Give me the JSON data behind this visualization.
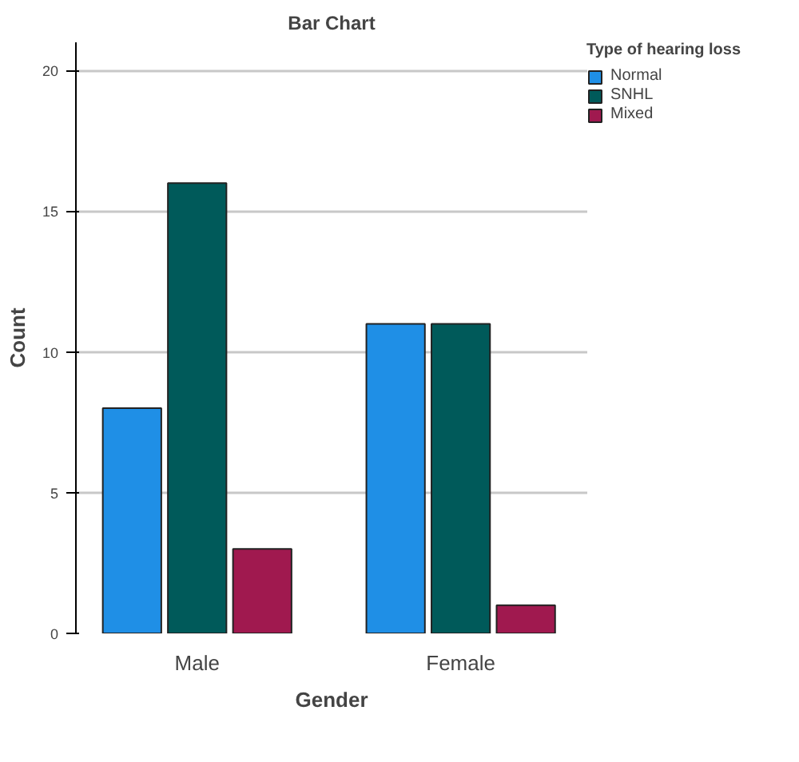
{
  "chart_data": {
    "type": "bar",
    "title": "Bar Chart",
    "xlabel": "Gender",
    "ylabel": "Count",
    "legend_title": "Type of hearing loss",
    "categories": [
      "Male",
      "Female"
    ],
    "series": [
      {
        "name": "Normal",
        "color": "#1f8fe6",
        "values": [
          8,
          11
        ]
      },
      {
        "name": "SNHL",
        "color": "#005a5a",
        "values": [
          16,
          11
        ]
      },
      {
        "name": "Mixed",
        "color": "#a0194f",
        "values": [
          3,
          1
        ]
      }
    ],
    "ylim": [
      0,
      21
    ],
    "yticks": [
      0,
      5,
      10,
      15,
      20
    ],
    "grid": "y",
    "legend": "top right"
  }
}
